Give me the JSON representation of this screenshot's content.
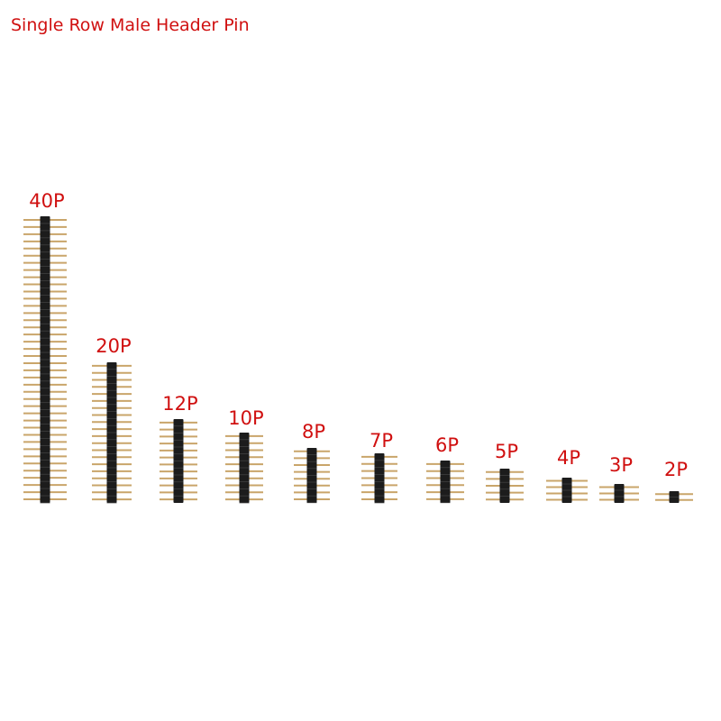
{
  "title": "Single Row Male Header Pin",
  "items": [
    {
      "label": "40P"
    },
    {
      "label": "20P"
    },
    {
      "label": "12P"
    },
    {
      "label": "10P"
    },
    {
      "label": "8P"
    },
    {
      "label": "7P"
    },
    {
      "label": "6P"
    },
    {
      "label": "5P"
    },
    {
      "label": "4P"
    },
    {
      "label": "3P"
    },
    {
      "label": "2P"
    }
  ]
}
